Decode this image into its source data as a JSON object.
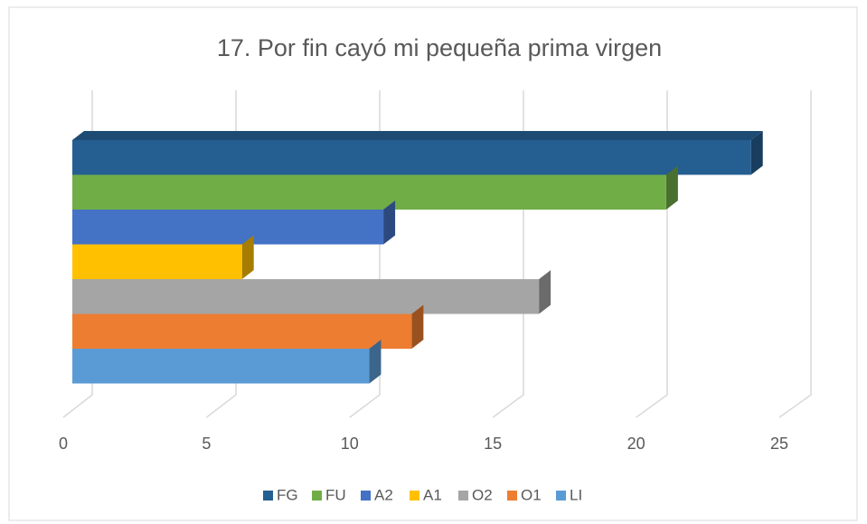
{
  "chart_data": {
    "type": "bar3d",
    "orientation": "horizontal",
    "title": "17. Por fin cayó mi pequeña prima virgen",
    "categories": [
      null
    ],
    "series": [
      {
        "name": "FG",
        "color": "#255e91",
        "values": [
          24
        ]
      },
      {
        "name": "FU",
        "color": "#70ad47",
        "values": [
          21
        ]
      },
      {
        "name": "A2",
        "color": "#4472c4",
        "values": [
          11
        ]
      },
      {
        "name": "A1",
        "color": "#ffc000",
        "values": [
          6
        ]
      },
      {
        "name": "O2",
        "color": "#a5a5a5",
        "values": [
          16.5
        ]
      },
      {
        "name": "O1",
        "color": "#ed7d31",
        "values": [
          12
        ]
      },
      {
        "name": "LI",
        "color": "#5b9bd5",
        "values": [
          10.5
        ]
      }
    ],
    "xlim": [
      0,
      25
    ],
    "xticks": [
      0,
      5,
      10,
      15,
      20,
      25
    ],
    "grid": true,
    "legend": "bottom"
  }
}
